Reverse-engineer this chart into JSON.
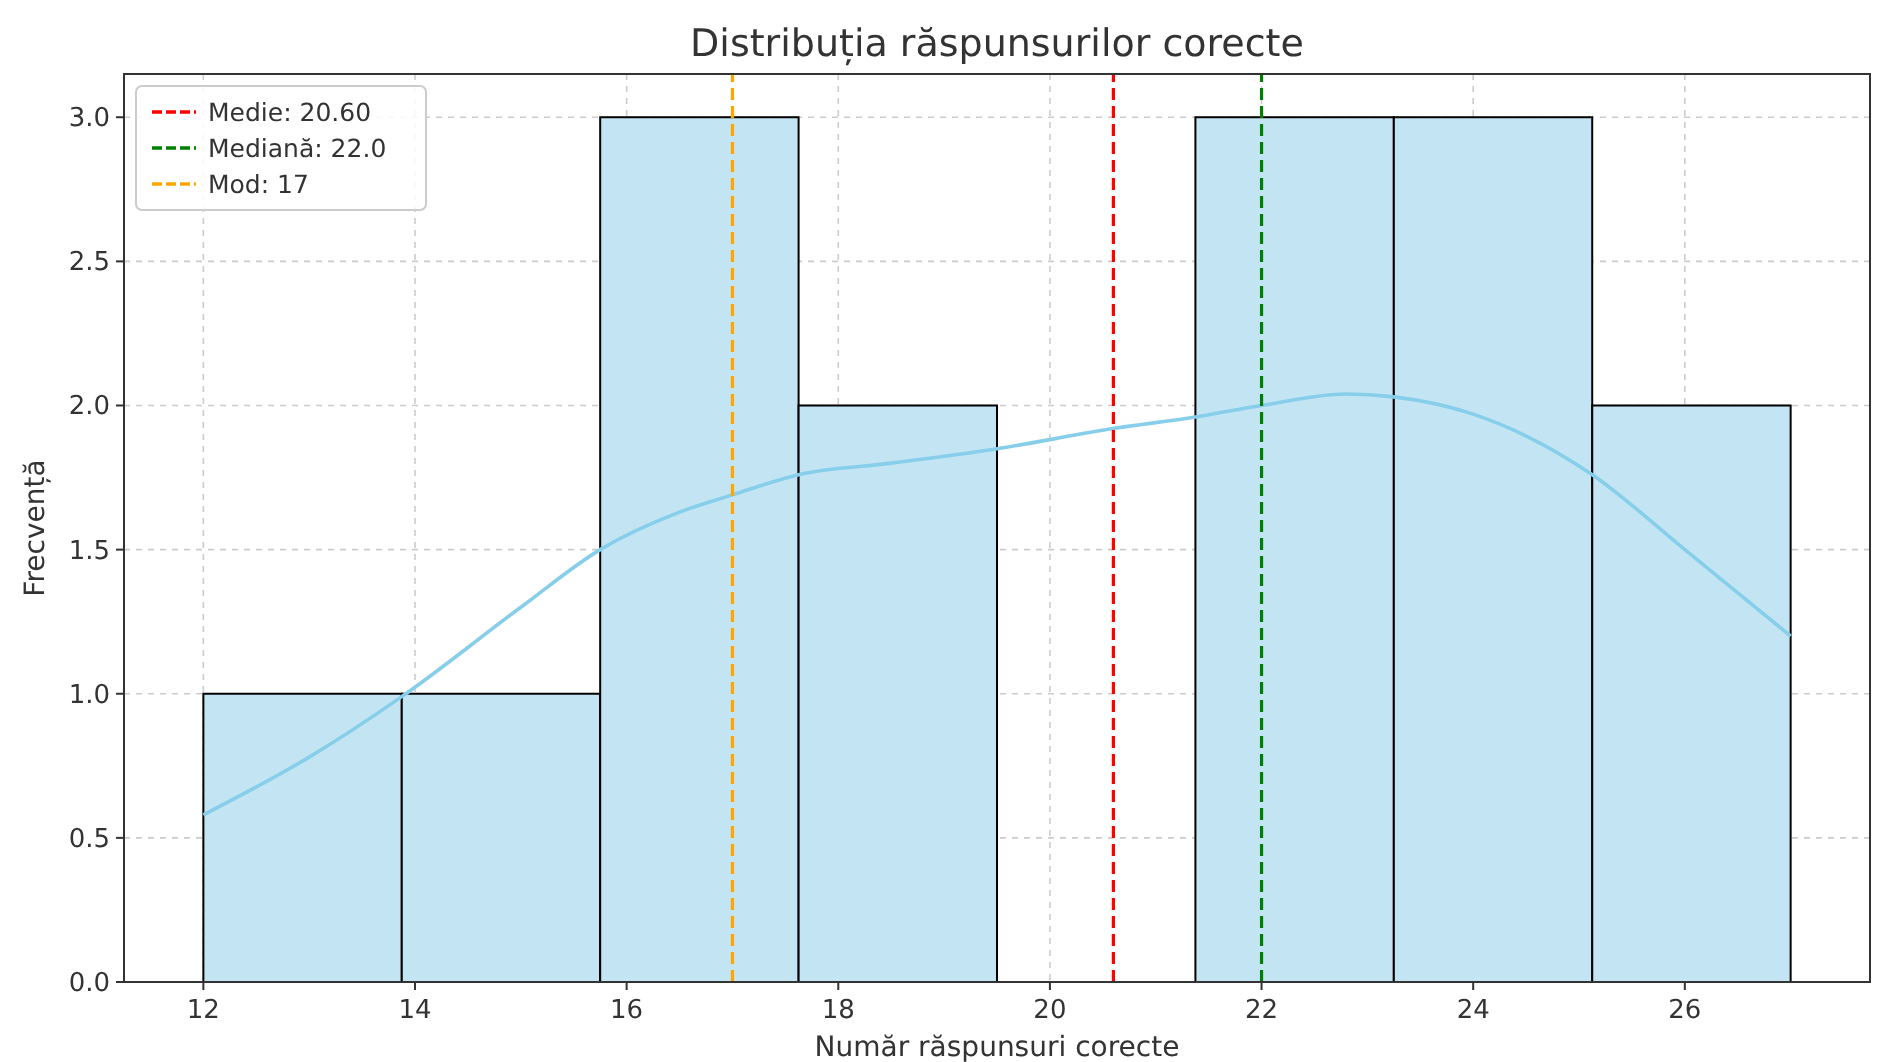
{
  "chart_data": {
    "type": "histogram",
    "title": "Distribuția răspunsurilor corecte",
    "xlabel": "Număr răspunsuri corecte",
    "ylabel": "Frecvență",
    "bins": [
      12,
      13.875,
      15.75,
      17.625,
      19.5,
      21.375,
      23.25,
      25.125,
      27
    ],
    "values": [
      1,
      1,
      3,
      2,
      0,
      3,
      3,
      2
    ],
    "color": "#c3e5f3",
    "series": [
      {
        "type": "line",
        "color": "#87ceeb",
        "x": [
          12,
          13,
          13.875,
          15,
          15.75,
          16.5,
          17,
          17.625,
          18.5,
          19.5,
          20.6,
          21.375,
          22,
          22.8,
          23.25,
          24,
          25.125,
          26,
          27
        ],
        "values": [
          0.58,
          0.78,
          0.99,
          1.3,
          1.5,
          1.63,
          1.69,
          1.76,
          1.8,
          1.85,
          1.92,
          1.96,
          2.0,
          2.04,
          2.03,
          1.97,
          1.76,
          1.5,
          1.2
        ]
      },
      {
        "type": "line",
        "name": "Medie: 20.60",
        "color": "#ff0000",
        "line_style": "dashed",
        "x": [
          20.6,
          20.6
        ],
        "values": [
          0,
          3.15
        ]
      },
      {
        "type": "line",
        "name": "Mediană: 22.0",
        "color": "#008000",
        "line_style": "dashed",
        "x": [
          22,
          22
        ],
        "values": [
          0,
          3.15
        ]
      },
      {
        "type": "line",
        "name": "Mod: 17",
        "color": "#ffa500",
        "line_style": "dashed",
        "x": [
          17,
          17
        ],
        "values": [
          0,
          3.15
        ]
      }
    ],
    "xlim": [
      11.25,
      27.75
    ],
    "xticks": [
      12,
      14,
      16,
      18,
      20,
      22,
      24,
      26
    ],
    "ylim": [
      0,
      3.15
    ],
    "yticks": [
      {
        "value": 0,
        "label": "0.0"
      },
      {
        "value": 0.5,
        "label": "0.5"
      },
      {
        "value": 1,
        "label": "1.0"
      },
      {
        "value": 1.5,
        "label": "1.5"
      },
      {
        "value": 2,
        "label": "2.0"
      },
      {
        "value": 2.5,
        "label": "2.5"
      },
      {
        "value": 3,
        "label": "3.0"
      }
    ],
    "grid": true,
    "legend": "top left"
  }
}
